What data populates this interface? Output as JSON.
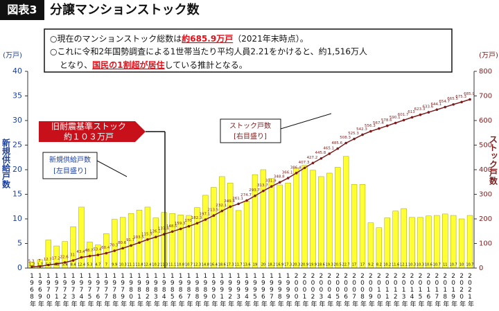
{
  "chart_data": {
    "type": "combo",
    "figure_label": "図表3",
    "title": "分譲マンションストック数",
    "note": [
      [
        "○現在のマンションストック総数は",
        "約685.9万戸",
        "（2021年末時点）。"
      ],
      [
        "○これに令和2年国勢調査による1世帯当たり平均人員2.21をかけると、約1,516万人"
      ],
      [
        "となり、",
        "国民の1割超が居住",
        "している推計となる。"
      ]
    ],
    "y_unit": "(万戸)",
    "y2_unit": "(万戸)",
    "y_axis_label": "新規供給戸数",
    "y2_axis_label": "ストック戸数",
    "callout_old": [
      "旧耐震基準ストック",
      "約１０３万戸"
    ],
    "callout_left_scale": "[左目盛り]",
    "callout_right_scale": "[右目盛り]",
    "categories": [
      "1968年",
      "1969年",
      "1970年",
      "1971年",
      "1972年",
      "1973年",
      "1974年",
      "1975年",
      "1976年",
      "1977年",
      "1978年",
      "1979年",
      "1980年",
      "1981年",
      "1982年",
      "1983年",
      "1984年",
      "1985年",
      "1986年",
      "1987年",
      "1988年",
      "1989年",
      "1990年",
      "1991年",
      "1992年",
      "1993年",
      "1994年",
      "1995年",
      "1996年",
      "1997年",
      "1998年",
      "1999年",
      "2000年",
      "2001年",
      "2002年",
      "2003年",
      "2004年",
      "2005年",
      "2006年",
      "2007年",
      "2008年",
      "2009年",
      "2010年",
      "2011年",
      "2012年",
      "2013年",
      "2014年",
      "2015年",
      "2016年",
      "2017年",
      "2018年",
      "2019年",
      "2020年",
      "2021年"
    ],
    "series": [
      {
        "name": "新規供給戸数",
        "type": "bar",
        "color": "#ffff33",
        "values": [
          1.2,
          1.7,
          5.7,
          4.5,
          5.4,
          8.4,
          12.4,
          5.3,
          4.7,
          7.0,
          9.9,
          10.3,
          11.1,
          11.8,
          12.4,
          10.2,
          11.3,
          11.1,
          10.8,
          10.7,
          12.3,
          14.8,
          16.4,
          18.6,
          17.3,
          11.7,
          13.6,
          19.0,
          20.0,
          18.2,
          16.9,
          17.3,
          20.3,
          20.9,
          19.9,
          18.6,
          19.3,
          20.5,
          22.7,
          17.0,
          17.0,
          9.2,
          8.2,
          10.2,
          11.6,
          12.1,
          10.3,
          10.3,
          10.6,
          10.7,
          11.0,
          10.7,
          10.0,
          10.7
        ]
      },
      {
        "name": "ストック戸数",
        "type": "line",
        "axis": "y2",
        "color": "#7b1d1d",
        "values": [
          5.3,
          7.0,
          12.7,
          17.2,
          22.6,
          31.0,
          43.4,
          48.7,
          53.4,
          60.4,
          70.3,
          80.6,
          91.7,
          103.5,
          115.9,
          126.1,
          137.4,
          148.5,
          159.3,
          170.0,
          182.3,
          197.1,
          213.5,
          232.1,
          249.4,
          261.1,
          274.7,
          293.7,
          313.7,
          331.9,
          348.8,
          366.1,
          386.4,
          407.3,
          427.2,
          445.8,
          465.1,
          485.6,
          508.3,
          525.3,
          542.3,
          556.3,
          567.4,
          578.6,
          590.1,
          601.7,
          613.0,
          623.3,
          633.6,
          644.1,
          654.7,
          665.5,
          675.3,
          685.9
        ]
      }
    ],
    "ylim": [
      0,
      40
    ],
    "yticks": [
      0,
      5,
      10,
      15,
      20,
      25,
      30,
      35,
      40
    ],
    "y2lim": [
      0,
      800
    ],
    "y2ticks": [
      0,
      100,
      200,
      300,
      400,
      500,
      600,
      700,
      800
    ]
  }
}
